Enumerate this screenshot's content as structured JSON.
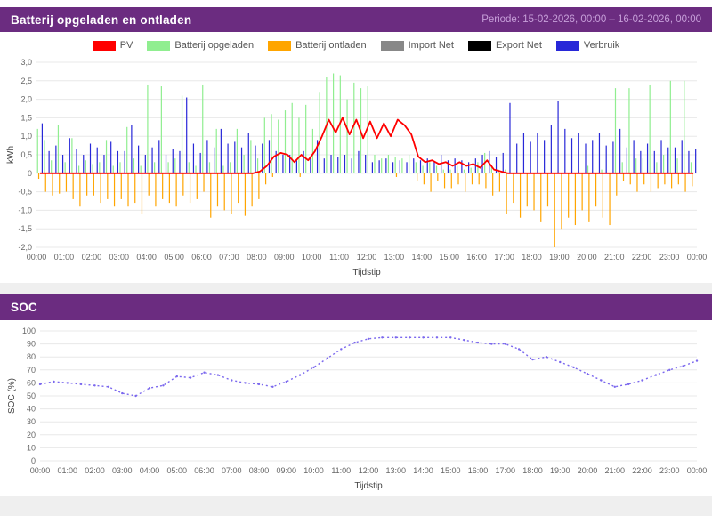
{
  "theme": {
    "header_bg": "#6b2c80",
    "header_text": "#ffffff",
    "period_text": "#c79fd9",
    "panel_bg": "#ffffff",
    "page_bg": "#efefef",
    "grid_color": "#e8e8e8",
    "tick_text": "#666666",
    "axis_title_text": "#444444"
  },
  "header1": {
    "title": "Batterij opgeladen en ontladen",
    "period": "Periode: 15-02-2026, 00:00 – 16-02-2026, 00:00"
  },
  "header2": {
    "title": "SOC"
  },
  "chart_data": [
    {
      "type": "bar",
      "subtype": "grouped bars with line overlay, 15-min resolution over 24h",
      "xlabel": "Tijdstip",
      "ylabel": "kWh",
      "ylim": [
        -2.0,
        3.0
      ],
      "yticks": [
        3,
        2.5,
        2,
        1.5,
        1,
        0.5,
        0,
        -0.5,
        -1,
        -1.5,
        -2
      ],
      "ytick_labels": [
        "3,0",
        "2,5",
        "2,0",
        "1,5",
        "1,0",
        "0,5",
        "0",
        "-0,5",
        "-1,0",
        "-1,5",
        "-2,0"
      ],
      "x_hour_labels": [
        "00:00",
        "01:00",
        "02:00",
        "03:00",
        "04:00",
        "05:00",
        "06:00",
        "07:00",
        "08:00",
        "09:00",
        "10:00",
        "11:00",
        "12:00",
        "13:00",
        "14:00",
        "15:00",
        "16:00",
        "17:00",
        "18:00",
        "19:00",
        "20:00",
        "21:00",
        "22:00",
        "23:00",
        "00:00"
      ],
      "legend_position": "top",
      "grid": "horizontal",
      "series": [
        {
          "name": "PV",
          "type": "line",
          "color": "#ff0000",
          "values": [
            0,
            0,
            0,
            0,
            0,
            0,
            0,
            0,
            0,
            0,
            0,
            0,
            0,
            0,
            0,
            0,
            0,
            0,
            0,
            0,
            0,
            0,
            0,
            0,
            0,
            0,
            0,
            0,
            0,
            0,
            0,
            0,
            0.05,
            0.2,
            0.45,
            0.55,
            0.5,
            0.3,
            0.5,
            0.35,
            0.6,
            1.0,
            1.45,
            1.1,
            1.5,
            1.05,
            1.45,
            0.95,
            1.4,
            0.95,
            1.35,
            1.0,
            1.45,
            1.3,
            1.05,
            0.45,
            0.3,
            0.35,
            0.25,
            0.3,
            0.2,
            0.3,
            0.2,
            0.25,
            0.15,
            0.35,
            0.1,
            0.05,
            0,
            0,
            0,
            0,
            0,
            0,
            0,
            0,
            0,
            0,
            0,
            0,
            0,
            0,
            0,
            0,
            0,
            0,
            0,
            0,
            0,
            0,
            0,
            0,
            0,
            0,
            0,
            0
          ]
        },
        {
          "name": "Batterij opgeladen",
          "type": "bar",
          "color": "#90ee90",
          "values": [
            1.2,
            0.9,
            0.35,
            1.3,
            0.3,
            0.95,
            0.2,
            0.35,
            0.25,
            0.3,
            0.9,
            0.2,
            0.3,
            1.25,
            0.4,
            0.2,
            2.4,
            0.3,
            2.35,
            0.3,
            0.4,
            2.1,
            0.3,
            0.2,
            2.4,
            0.3,
            1.2,
            0.2,
            0.3,
            1.2,
            0.5,
            0.9,
            0.4,
            1.5,
            1.6,
            1.45,
            1.7,
            1.9,
            1.5,
            1.85,
            1.2,
            2.2,
            2.6,
            2.7,
            2.65,
            2.0,
            2.45,
            2.3,
            2.35,
            0.5,
            0.4,
            0.5,
            0.45,
            0.4,
            0.5,
            0.3,
            0.2,
            0.3,
            0.2,
            0.1,
            0.1,
            0.2,
            0.1,
            0.15,
            0.3,
            0.55,
            0.2,
            0.1,
            0.1,
            0,
            0,
            0,
            0,
            0,
            0,
            0,
            0,
            0,
            0,
            0,
            0.2,
            0,
            0.1,
            0,
            2.3,
            0.3,
            2.3,
            0.4,
            0.4,
            2.4,
            0.3,
            0.5,
            2.5,
            0.4,
            2.5,
            0.3
          ]
        },
        {
          "name": "Batterij ontladen",
          "type": "bar",
          "color": "#ffa500",
          "values": [
            -0.15,
            -0.5,
            -0.6,
            -0.55,
            -0.5,
            -0.7,
            -0.9,
            -0.6,
            -0.6,
            -0.8,
            -0.7,
            -0.9,
            -0.7,
            -0.9,
            -0.8,
            -1.1,
            -0.6,
            -0.9,
            -0.7,
            -0.8,
            -0.9,
            -0.6,
            -0.8,
            -0.7,
            -0.5,
            -1.2,
            -0.9,
            -1.0,
            -1.1,
            -0.8,
            -1.15,
            -0.9,
            -0.7,
            -0.3,
            -0.1,
            0,
            0,
            0,
            -0.1,
            0,
            0,
            0,
            0,
            0,
            0,
            0,
            0,
            0,
            0,
            0,
            0,
            0,
            -0.1,
            0,
            0,
            -0.2,
            -0.3,
            -0.5,
            -0.2,
            -0.4,
            -0.4,
            -0.3,
            -0.5,
            -0.3,
            -0.3,
            -0.4,
            -0.6,
            -0.5,
            -1.1,
            -0.8,
            -1.2,
            -0.9,
            -1.0,
            -1.3,
            -0.9,
            -2.0,
            -1.5,
            -1.2,
            -1.4,
            -1.0,
            -1.3,
            -0.9,
            -1.2,
            -1.4,
            -0.6,
            -0.2,
            -0.3,
            -0.5,
            -0.3,
            -0.5,
            -0.4,
            -0.3,
            -0.4,
            -0.3,
            -0.5,
            -0.35
          ]
        },
        {
          "name": "Import Net",
          "type": "bar",
          "color": "#888888",
          "values": [
            0,
            0,
            0,
            0,
            0,
            0,
            0,
            0,
            0,
            0,
            0,
            0,
            0,
            0,
            0,
            0,
            0,
            0,
            0,
            0,
            0,
            0,
            0,
            0,
            0,
            0,
            0,
            0,
            0,
            0,
            0,
            0,
            0,
            0,
            0,
            0,
            0,
            0,
            0,
            0,
            0,
            0,
            0,
            0,
            0,
            0,
            0,
            0,
            0,
            0,
            0,
            0,
            0,
            0,
            0,
            0,
            0,
            0,
            0,
            0,
            0,
            0,
            0,
            0,
            0,
            0,
            0,
            0,
            0,
            0,
            0,
            0,
            0,
            0,
            0,
            0,
            0,
            0,
            0,
            0,
            0,
            0,
            0,
            0,
            0,
            0,
            0,
            0,
            0,
            0,
            0,
            0,
            0,
            0,
            0,
            0
          ]
        },
        {
          "name": "Export Net",
          "type": "bar",
          "color": "#000000",
          "values": [
            0,
            0,
            0,
            0,
            0,
            0,
            0,
            0,
            0,
            0,
            0,
            0,
            0,
            0,
            0,
            0,
            0,
            0,
            0,
            0,
            0,
            0,
            0,
            0,
            0,
            0,
            0,
            0,
            0,
            0,
            0,
            0,
            0,
            0,
            0,
            0,
            0,
            0,
            0,
            0,
            0,
            0,
            0,
            0,
            0,
            0,
            0,
            0,
            0,
            0,
            0,
            0,
            0,
            0,
            0,
            0,
            0,
            0,
            0,
            0,
            0,
            0,
            0,
            0,
            0,
            0,
            0,
            0,
            0,
            0,
            0,
            0,
            0,
            0,
            0,
            0,
            0,
            0,
            0,
            0,
            0,
            0,
            0,
            0,
            0,
            0,
            0,
            0,
            0,
            0,
            0,
            0,
            0,
            0,
            0,
            0
          ]
        },
        {
          "name": "Verbruik",
          "type": "bar",
          "color": "#2828d8",
          "values": [
            1.35,
            0.6,
            0.75,
            0.5,
            0.95,
            0.65,
            0.5,
            0.8,
            0.7,
            0.5,
            0.85,
            0.6,
            0.6,
            1.3,
            0.75,
            0.5,
            0.7,
            0.9,
            0.5,
            0.65,
            0.6,
            2.05,
            0.8,
            0.55,
            0.9,
            0.7,
            1.2,
            0.8,
            0.85,
            0.7,
            1.1,
            0.75,
            0.8,
            0.9,
            0.6,
            0.5,
            0.5,
            0.35,
            0.6,
            0.4,
            0.9,
            0.4,
            0.5,
            0.45,
            0.5,
            0.4,
            0.6,
            0.5,
            0.3,
            0.35,
            0.4,
            0.3,
            0.35,
            0.3,
            0.4,
            0.35,
            0.4,
            0.3,
            0.5,
            0.35,
            0.4,
            0.35,
            0.3,
            0.4,
            0.5,
            0.6,
            0.45,
            0.55,
            1.9,
            0.8,
            1.1,
            0.85,
            1.1,
            0.9,
            1.3,
            1.95,
            1.2,
            0.95,
            1.1,
            0.8,
            0.9,
            1.1,
            0.75,
            0.85,
            1.2,
            0.7,
            0.9,
            0.6,
            0.8,
            0.6,
            0.9,
            0.7,
            0.7,
            0.9,
            0.6,
            0.65
          ]
        }
      ]
    },
    {
      "type": "line",
      "subtype": "dotted line, 30-min resolution over 24h",
      "xlabel": "Tijdstip",
      "ylabel": "SOC (%)",
      "ylim": [
        0,
        100
      ],
      "yticks": [
        100,
        90,
        80,
        70,
        60,
        50,
        40,
        30,
        20,
        10,
        0
      ],
      "ytick_labels": [
        "100",
        "90",
        "80",
        "70",
        "60",
        "50",
        "40",
        "30",
        "20",
        "10",
        "0"
      ],
      "x_hour_labels": [
        "00:00",
        "01:00",
        "02:00",
        "03:00",
        "04:00",
        "05:00",
        "06:00",
        "07:00",
        "08:00",
        "09:00",
        "10:00",
        "11:00",
        "12:00",
        "13:00",
        "14:00",
        "15:00",
        "16:00",
        "17:00",
        "18:00",
        "19:00",
        "20:00",
        "21:00",
        "22:00",
        "23:00",
        "00:00"
      ],
      "grid": "horizontal",
      "color": "#7b68ee",
      "values": [
        59,
        61,
        60,
        59,
        58,
        57,
        52,
        50,
        56,
        58,
        65,
        64,
        68,
        66,
        62,
        60,
        59,
        57,
        61,
        66,
        72,
        79,
        86,
        91,
        94,
        95,
        95,
        95,
        95,
        95,
        95,
        93,
        91,
        90,
        90,
        86,
        78,
        80,
        76,
        72,
        67,
        62,
        57,
        59,
        62,
        66,
        70,
        73,
        77
      ]
    }
  ]
}
